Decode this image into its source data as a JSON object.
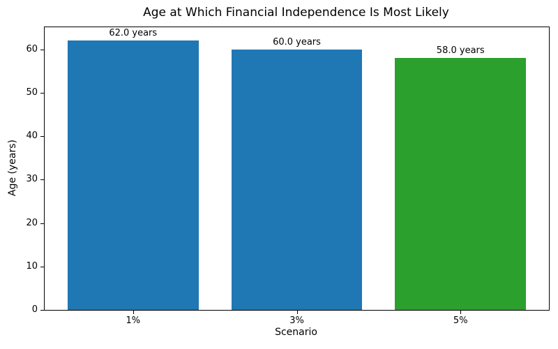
{
  "chart_data": {
    "type": "bar",
    "title": "Age at Which Financial Independence Is Most Likely",
    "xlabel": "Scenario",
    "ylabel": "Age (years)",
    "categories": [
      "1%",
      "3%",
      "5%"
    ],
    "values": [
      62.0,
      60.0,
      58.0
    ],
    "bar_labels": [
      "62.0 years",
      "60.0 years",
      "58.0 years"
    ],
    "bar_colors": [
      "#1f77b4",
      "#1f77b4",
      "#2ca02c"
    ],
    "bar_width": 0.8,
    "xlim": [
      -0.54,
      2.54
    ],
    "ylim": [
      0,
      65.1
    ],
    "yticks": [
      0,
      10,
      20,
      30,
      40,
      50,
      60
    ],
    "grid": false,
    "legend_position": "none",
    "background_color": "#ffffff",
    "spine_color": "#000000"
  }
}
